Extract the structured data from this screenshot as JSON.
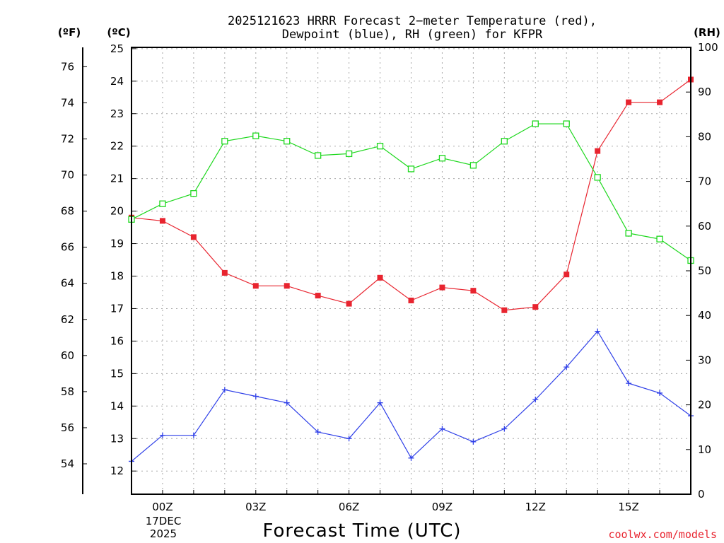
{
  "chart_data": {
    "type": "line",
    "title_line1": "2025121623 HRRR Forecast 2−meter Temperature (red),",
    "title_line2": "Dewpoint (blue), RH (green) for KFPR",
    "unit_f": "(ºF)",
    "unit_c": "(ºC)",
    "unit_rh": "(RH)",
    "xlabel": "Forecast Time (UTC)",
    "credit": "coolwx.com/models",
    "x_date_line1": "17DEC",
    "x_date_line2": "2025",
    "x_ticks": [
      {
        "hour": 0,
        "label": "00Z"
      },
      {
        "hour": 3,
        "label": "03Z"
      },
      {
        "hour": 6,
        "label": "06Z"
      },
      {
        "hour": 9,
        "label": "09Z"
      },
      {
        "hour": 12,
        "label": "12Z"
      },
      {
        "hour": 15,
        "label": "15Z"
      }
    ],
    "x_range_hours": [
      -1,
      17
    ],
    "c_range": [
      12,
      25
    ],
    "c_ticks": [
      12,
      13,
      14,
      15,
      16,
      17,
      18,
      19,
      20,
      21,
      22,
      23,
      24,
      25
    ],
    "f_ticks": [
      54,
      56,
      58,
      60,
      62,
      64,
      66,
      68,
      70,
      72,
      74,
      76
    ],
    "rh_range": [
      0,
      100
    ],
    "rh_ticks": [
      0,
      10,
      20,
      30,
      40,
      50,
      60,
      70,
      80,
      90,
      100
    ],
    "hours": [
      -1,
      0,
      1,
      2,
      3,
      4,
      5,
      6,
      7,
      8,
      9,
      10,
      11,
      12,
      13,
      14,
      15,
      16,
      17
    ],
    "series": [
      {
        "name": "Temperature",
        "axis": "c",
        "color": "#e8242f",
        "marker": "filled-square",
        "values": [
          19.8,
          19.7,
          19.2,
          18.1,
          17.7,
          17.7,
          17.4,
          17.15,
          17.95,
          17.25,
          17.65,
          17.55,
          16.95,
          17.05,
          18.05,
          21.85,
          23.35,
          23.35,
          24.05
        ]
      },
      {
        "name": "Dewpoint",
        "axis": "c",
        "color": "#2e3fe8",
        "marker": "plus",
        "values": [
          12.3,
          13.1,
          13.1,
          14.5,
          14.3,
          14.1,
          13.2,
          13.0,
          14.1,
          12.4,
          13.3,
          12.9,
          13.3,
          14.2,
          15.2,
          16.3,
          14.7,
          14.4,
          13.7
        ]
      },
      {
        "name": "RH",
        "axis": "rh",
        "color": "#1fd81f",
        "marker": "open-square",
        "values": [
          61.5,
          65,
          67.3,
          79,
          80.2,
          79,
          75.8,
          76.2,
          77.9,
          72.8,
          75.2,
          73.6,
          79,
          82.9,
          82.9,
          70.9,
          58.4,
          57.1,
          52.3
        ]
      }
    ],
    "grid": true
  }
}
